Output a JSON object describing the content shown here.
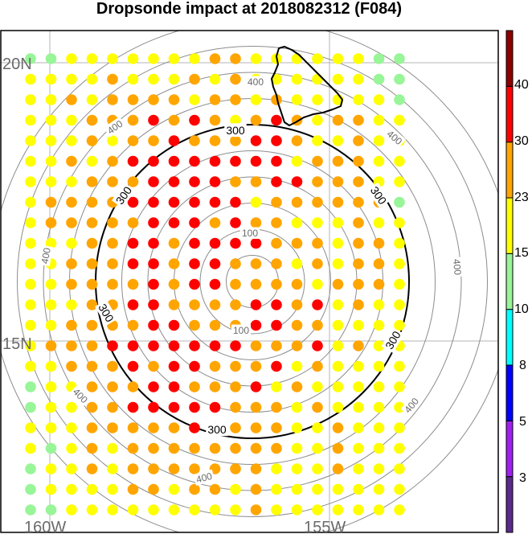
{
  "title": "Dropsonde impact at 2018082312 (F084)",
  "map": {
    "lat_labels": [
      "20N",
      "15N"
    ],
    "lon_labels": [
      "160W",
      "155W"
    ],
    "ring_values_km": [
      100,
      200,
      300,
      400
    ],
    "ring_labels": {
      "inner": "100",
      "highlight": "300",
      "outer": "400"
    },
    "highlight_ring_color": "#000000",
    "ring_color": "#8c8c8c",
    "grid_color": "#b4b4b4",
    "coast_color": "#000000"
  },
  "colorbar": {
    "tick_labels": [
      "3",
      "5",
      "8",
      "10",
      "15",
      "23",
      "30",
      "40"
    ],
    "colors": [
      "#5a2a8c",
      "#a020f0",
      "#0000ff",
      "#00ffff",
      "#98f598",
      "#ffff00",
      "#ffa500",
      "#ff0000",
      "#8b0000"
    ]
  },
  "points": {
    "color_key": {
      "L": "#98f598",
      "Y": "#ffff00",
      "O": "#ffa500",
      "R": "#ff0000"
    },
    "rows": [
      "LLYYYYYYYOOYYYYYYLL",
      "YYYYOYYYOYOYYYYYYLL",
      "YYOYOOOOYOOYOYYYYYL",
      "YYYOOOROROYOROYOOYY",
      "YYYOYOOROOORROYYOYY",
      "YYOYORRRRRRRRYOOOYY",
      "YYYOOORRRROORROOOYY",
      "YOOOORRRRRRYOOOOOOL",
      "YOOOOORRROROOYYYOYY",
      "YYYOORRORRRROOOYOOY",
      "YYOOORRORROOOYOYOOY",
      "YYOOOORORROOOOYOOOY",
      "YYYOORROOOORRORYOYY",
      "YYOOOORROOORROOYYYY",
      "YOOORRRRRRROOORYOYY",
      "YYOOORORROOORYOYYYY",
      "LYYOOORROOORYOYYYYY",
      "LYYOORRRRROOOYOYYYY",
      "YYYOOOOOROOOOYYOYYY",
      "YLYOYOOOOOOOOYYOYYY",
      "LYYOYOOOOOOOYYYOYYY",
      "LYYYYOOYOOYOYYYYYYY",
      "LLYYYYYYYYYOYYYYYYY"
    ]
  }
}
